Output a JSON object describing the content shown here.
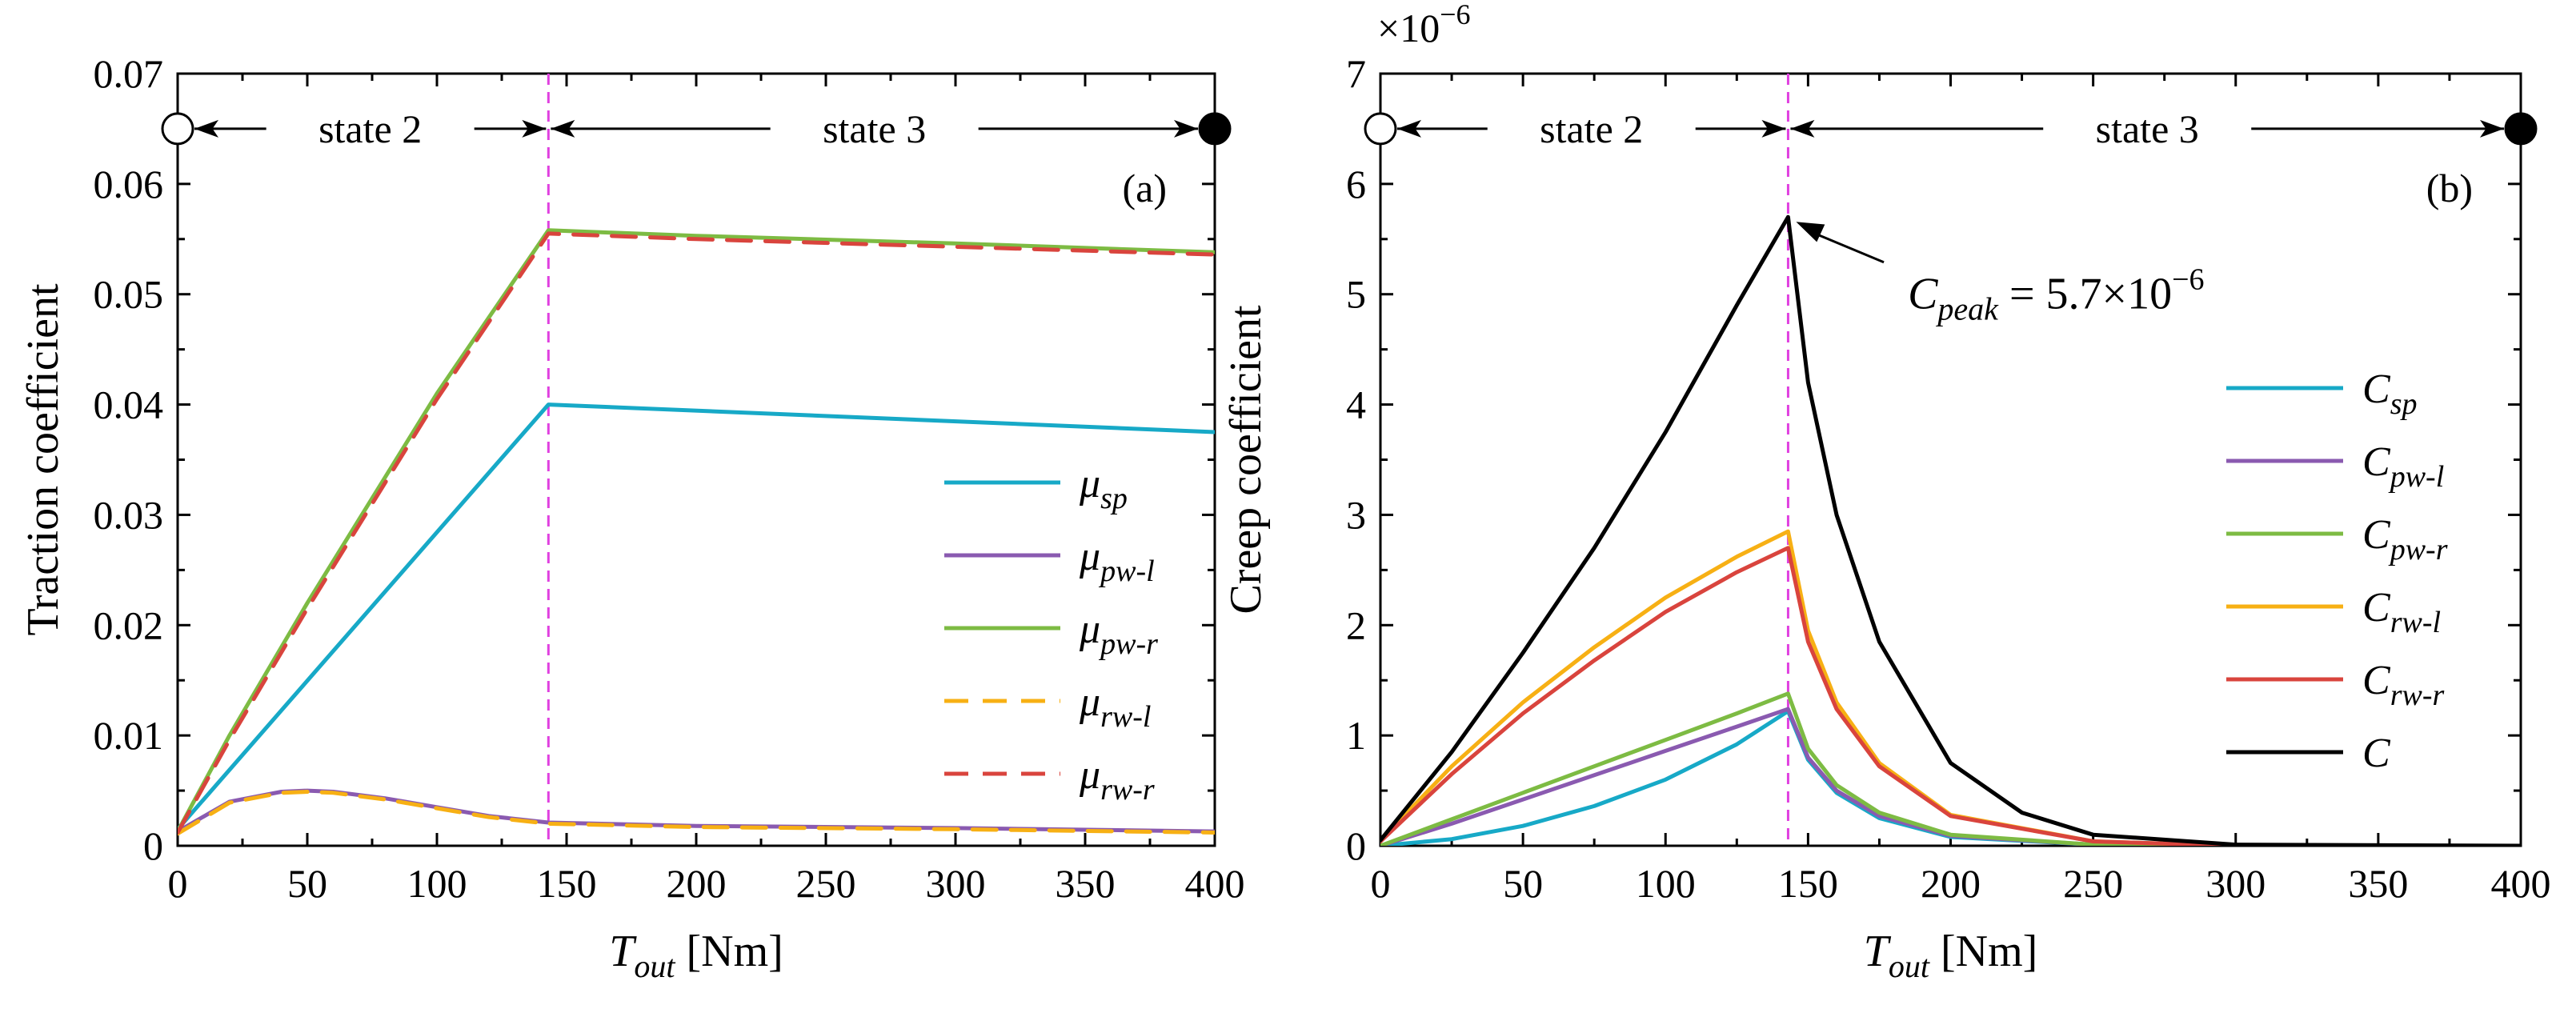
{
  "chart_data": [
    {
      "type": "line",
      "panel_label": "(a)",
      "xlabel": {
        "main": "T",
        "sub": "out",
        "unit": " [Nm]"
      },
      "ylabel": "Traction coefficient",
      "xlim": [
        0,
        400
      ],
      "ylim": [
        0,
        0.07
      ],
      "xticks": [
        0,
        50,
        100,
        150,
        200,
        250,
        300,
        350,
        400
      ],
      "yticks": [
        0,
        0.01,
        0.02,
        0.03,
        0.04,
        0.05,
        0.06,
        0.07
      ],
      "ytick_labels": [
        "0",
        "0.01",
        "0.02",
        "0.03",
        "0.04",
        "0.05",
        "0.06",
        "0.07"
      ],
      "divider_x": 143,
      "states": [
        {
          "label": "state 2",
          "x_from": 0,
          "x_to": 143
        },
        {
          "label": "state 3",
          "x_from": 143,
          "x_to": 400
        }
      ],
      "state_y": 0.065,
      "series": [
        {
          "name": "μ",
          "sub": "sp",
          "color": "#17a9c7",
          "dash": false,
          "x": [
            0,
            143,
            400
          ],
          "y": [
            0.0015,
            0.04,
            0.0375
          ]
        },
        {
          "name": "μ",
          "sub": "pw-l",
          "color": "#8a5ab0",
          "dash": false,
          "x": [
            0,
            20,
            40,
            50,
            60,
            80,
            100,
            120,
            143,
            200,
            300,
            400
          ],
          "y": [
            0.0013,
            0.004,
            0.0049,
            0.005,
            0.0049,
            0.0043,
            0.0035,
            0.0027,
            0.0021,
            0.0018,
            0.0016,
            0.0013
          ]
        },
        {
          "name": "μ",
          "sub": "pw-r",
          "color": "#7dbb43",
          "dash": false,
          "x": [
            0,
            20,
            50,
            100,
            143,
            200,
            300,
            400
          ],
          "y": [
            0.0013,
            0.01,
            0.022,
            0.041,
            0.0558,
            0.0553,
            0.0546,
            0.0538
          ]
        },
        {
          "name": "μ",
          "sub": "rw-l",
          "color": "#f7b014",
          "dash": true,
          "x": [
            0,
            20,
            40,
            50,
            60,
            80,
            100,
            120,
            143,
            200,
            300,
            400
          ],
          "y": [
            0.0011,
            0.0039,
            0.0048,
            0.0049,
            0.0048,
            0.0042,
            0.0034,
            0.0026,
            0.002,
            0.0017,
            0.0015,
            0.0012
          ]
        },
        {
          "name": "μ",
          "sub": "rw-r",
          "color": "#d9443d",
          "dash": true,
          "x": [
            0,
            20,
            50,
            100,
            143,
            200,
            300,
            400
          ],
          "y": [
            0.0012,
            0.0096,
            0.0215,
            0.0405,
            0.0555,
            0.055,
            0.0543,
            0.0536
          ]
        }
      ]
    },
    {
      "type": "line",
      "panel_label": "(b)",
      "xlabel": {
        "main": "T",
        "sub": "out",
        "unit": " [Nm]"
      },
      "ylabel": "Creep coefficient",
      "ylabel_multiplier": "×10",
      "ylabel_multiplier_exp": "−6",
      "xlim": [
        0,
        400
      ],
      "ylim": [
        0,
        7
      ],
      "xticks": [
        0,
        50,
        100,
        150,
        200,
        250,
        300,
        350,
        400
      ],
      "yticks": [
        0,
        1,
        2,
        3,
        4,
        5,
        6,
        7
      ],
      "ytick_labels": [
        "0",
        "1",
        "2",
        "3",
        "4",
        "5",
        "6",
        "7"
      ],
      "divider_x": 143,
      "states": [
        {
          "label": "state 2",
          "x_from": 0,
          "x_to": 143
        },
        {
          "label": "state 3",
          "x_from": 143,
          "x_to": 400
        }
      ],
      "state_y": 6.5,
      "annotation": {
        "text_main": "C",
        "text_sub": "peak",
        "text_rest": " = 5.7×10",
        "text_exp": "−6",
        "x": 143,
        "y": 5.7,
        "text_x": 185,
        "text_y": 5.0
      },
      "series": [
        {
          "name": "C",
          "sub": "sp",
          "color": "#17a9c7",
          "x": [
            0,
            25,
            50,
            75,
            100,
            125,
            143,
            150,
            160,
            175,
            200,
            250,
            300,
            400
          ],
          "y": [
            0.0,
            0.06,
            0.18,
            0.36,
            0.6,
            0.92,
            1.22,
            0.78,
            0.48,
            0.25,
            0.08,
            0.01,
            0.0,
            0.0
          ]
        },
        {
          "name": "C",
          "sub": "pw-l",
          "color": "#8a5ab0",
          "x": [
            0,
            25,
            50,
            75,
            100,
            125,
            143,
            150,
            160,
            175,
            200,
            250,
            300,
            400
          ],
          "y": [
            0.0,
            0.2,
            0.42,
            0.64,
            0.86,
            1.08,
            1.24,
            0.8,
            0.5,
            0.27,
            0.09,
            0.01,
            0.0,
            0.0
          ]
        },
        {
          "name": "C",
          "sub": "pw-r",
          "color": "#7dbb43",
          "x": [
            0,
            25,
            50,
            75,
            100,
            125,
            143,
            150,
            160,
            175,
            200,
            250,
            300,
            400
          ],
          "y": [
            0.0,
            0.24,
            0.48,
            0.72,
            0.96,
            1.2,
            1.38,
            0.88,
            0.55,
            0.3,
            0.1,
            0.01,
            0.0,
            0.0
          ]
        },
        {
          "name": "C",
          "sub": "rw-l",
          "color": "#f7b014",
          "x": [
            0,
            25,
            50,
            75,
            100,
            125,
            143,
            150,
            160,
            175,
            200,
            250,
            300,
            400
          ],
          "y": [
            0.05,
            0.72,
            1.3,
            1.8,
            2.25,
            2.62,
            2.85,
            1.95,
            1.3,
            0.75,
            0.28,
            0.04,
            0.0,
            0.0
          ]
        },
        {
          "name": "C",
          "sub": "rw-r",
          "color": "#d9443d",
          "x": [
            0,
            25,
            50,
            75,
            100,
            125,
            143,
            150,
            160,
            175,
            200,
            250,
            300,
            400
          ],
          "y": [
            0.04,
            0.65,
            1.2,
            1.68,
            2.12,
            2.48,
            2.7,
            1.85,
            1.24,
            0.72,
            0.27,
            0.04,
            0.0,
            0.0
          ]
        },
        {
          "name": "C",
          "sub": "",
          "color": "#000000",
          "x": [
            0,
            25,
            50,
            75,
            100,
            125,
            143,
            150,
            160,
            175,
            200,
            225,
            250,
            300,
            400
          ],
          "y": [
            0.05,
            0.85,
            1.75,
            2.7,
            3.75,
            4.9,
            5.7,
            4.2,
            3.0,
            1.85,
            0.75,
            0.3,
            0.1,
            0.01,
            0.0
          ]
        }
      ]
    }
  ]
}
